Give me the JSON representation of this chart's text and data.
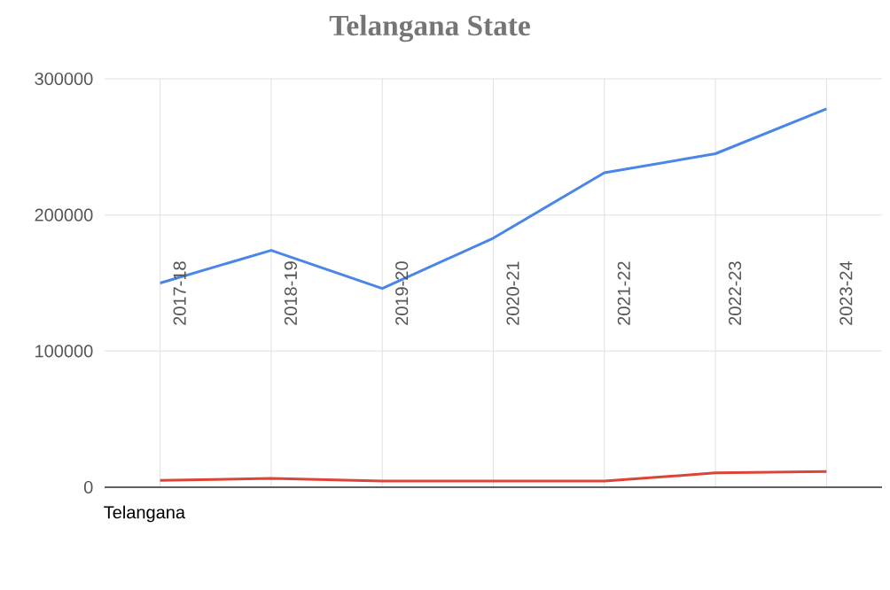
{
  "chart_data": {
    "type": "line",
    "title": "Telangana State",
    "categories": [
      "2017-18",
      "2018-19",
      "2019-20",
      "2020-21",
      "2021-22",
      "2022-23",
      "2023-24"
    ],
    "series": [
      {
        "color": "#4a86e8",
        "values": [
          150000,
          174000,
          146000,
          183000,
          231000,
          245000,
          278000
        ]
      },
      {
        "color": "#db4437",
        "values": [
          5000,
          6500,
          4500,
          4500,
          4500,
          10500,
          11500
        ]
      }
    ],
    "ylim": [
      0,
      300000
    ],
    "yticks": [
      0,
      100000,
      200000,
      300000
    ],
    "grid": true,
    "annotations": [
      "Telangana"
    ]
  }
}
